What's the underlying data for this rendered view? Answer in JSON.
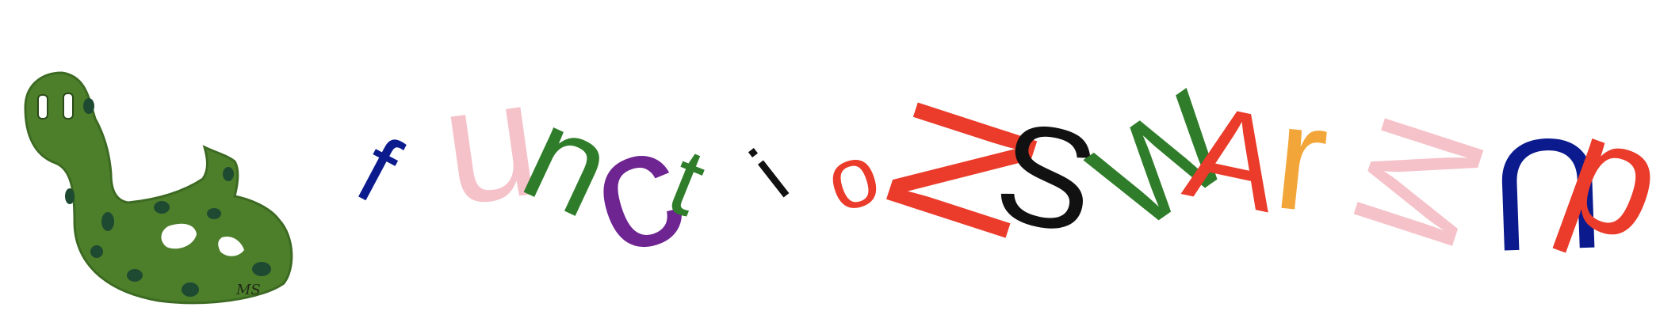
{
  "title": {
    "text": "functions warm up",
    "letters": [
      {
        "char": "f",
        "color": "#0b1a8c"
      },
      {
        "char": "u",
        "color": "#f5c2c9"
      },
      {
        "char": "n",
        "color": "#2f7d2a"
      },
      {
        "char": "c",
        "color": "#6e2591"
      },
      {
        "char": "t",
        "color": "#2f7d2a"
      },
      {
        "char": "i",
        "color": "#111111"
      },
      {
        "char": "o",
        "color": "#ea3b2b"
      },
      {
        "char": "N",
        "color": "#ea3b2b"
      },
      {
        "char": "S",
        "color": "#111111"
      },
      {
        "char": "W",
        "color": "#2f7d2a"
      },
      {
        "char": "A",
        "color": "#ea3b2b"
      },
      {
        "char": "r",
        "color": "#f2a63a"
      },
      {
        "char": "M",
        "color": "#f5c2c9"
      },
      {
        "char": "U",
        "color": "#0b1a8c"
      },
      {
        "char": "p",
        "color": "#ea3b2b"
      }
    ]
  },
  "logo": {
    "icon": "green-snake-icon",
    "colors": {
      "body": "#4d7f2b",
      "spots": "#1e4a31"
    },
    "signature": "MS"
  }
}
